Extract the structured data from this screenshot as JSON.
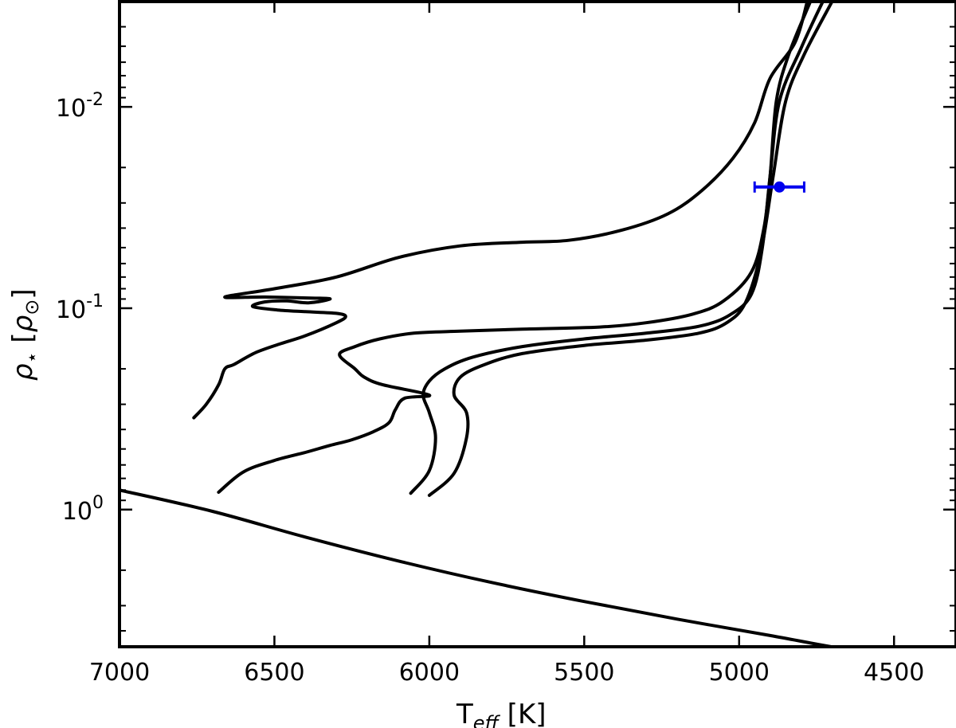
{
  "chart_data": {
    "type": "line",
    "title": "",
    "xlabel": "T_eff [K]",
    "xlabel_main": "T",
    "xlabel_sub": "eff",
    "xlabel_unit": " [K]",
    "ylabel": "ρ⋆ [ρ⊙]",
    "ylabel_main": "ρ",
    "ylabel_sub": "⋆",
    "ylabel_unit_left": " [",
    "ylabel_unit_rho": "ρ",
    "ylabel_unit_sub": "⊙",
    "ylabel_unit_right": "]",
    "x_axis": {
      "scale": "linear",
      "reversed": true,
      "range": [
        7000,
        4300
      ],
      "ticks": [
        7000,
        6500,
        6000,
        5500,
        5000,
        4500
      ],
      "tick_labels": [
        "7000",
        "6500",
        "6000",
        "5500",
        "5000",
        "4500"
      ]
    },
    "y_axis": {
      "scale": "log",
      "reversed": true,
      "range": [
        0.003,
        4.8
      ],
      "major_ticks": [
        0.01,
        0.1,
        1.0
      ],
      "tick_labels": [
        {
          "base": "10",
          "exp": "-2"
        },
        {
          "base": "10",
          "exp": "-1"
        },
        {
          "base": "10",
          "exp": "0"
        }
      ]
    },
    "grid": false,
    "legend": "none",
    "series": [
      {
        "points": [
          [
            7000,
            0.8
          ],
          [
            6700,
            1.02
          ],
          [
            6400,
            1.37
          ],
          [
            6100,
            1.8
          ],
          [
            5800,
            2.3
          ],
          [
            5500,
            2.86
          ],
          [
            5200,
            3.5
          ],
          [
            4900,
            4.22
          ],
          [
            4650,
            4.95
          ],
          [
            4300,
            5.9
          ]
        ]
      },
      {
        "points": [
          [
            6760,
            0.35
          ],
          [
            6720,
            0.3
          ],
          [
            6680,
            0.24
          ],
          [
            6660,
            0.2
          ],
          [
            6630,
            0.19
          ],
          [
            6560,
            0.166
          ],
          [
            6480,
            0.15
          ],
          [
            6400,
            0.137
          ],
          [
            6300,
            0.118
          ],
          [
            6270,
            0.11
          ],
          [
            6300,
            0.106
          ],
          [
            6400,
            0.104
          ],
          [
            6490,
            0.102
          ],
          [
            6570,
            0.098
          ],
          [
            6530,
            0.093
          ],
          [
            6460,
            0.092
          ],
          [
            6390,
            0.094
          ],
          [
            6320,
            0.09
          ],
          [
            6380,
            0.089
          ],
          [
            6530,
            0.088
          ],
          [
            6660,
            0.088
          ],
          [
            6500,
            0.08
          ],
          [
            6300,
            0.07
          ],
          [
            6100,
            0.056
          ],
          [
            5900,
            0.049
          ],
          [
            5700,
            0.047
          ],
          [
            5550,
            0.046
          ],
          [
            5380,
            0.041
          ],
          [
            5230,
            0.034
          ],
          [
            5120,
            0.026
          ],
          [
            5020,
            0.018
          ],
          [
            4950,
            0.012
          ],
          [
            4900,
            0.0072
          ],
          [
            4820,
            0.0048
          ],
          [
            4780,
            0.003
          ]
        ]
      },
      {
        "points": [
          [
            6680,
            0.82
          ],
          [
            6600,
            0.65
          ],
          [
            6500,
            0.57
          ],
          [
            6400,
            0.52
          ],
          [
            6320,
            0.48
          ],
          [
            6250,
            0.45
          ],
          [
            6180,
            0.41
          ],
          [
            6130,
            0.37
          ],
          [
            6110,
            0.32
          ],
          [
            6080,
            0.28
          ],
          [
            6000,
            0.27
          ],
          [
            6150,
            0.24
          ],
          [
            6210,
            0.22
          ],
          [
            6240,
            0.2
          ],
          [
            6290,
            0.17
          ],
          [
            6240,
            0.155
          ],
          [
            6160,
            0.142
          ],
          [
            6050,
            0.133
          ],
          [
            5900,
            0.13
          ],
          [
            5700,
            0.127
          ],
          [
            5450,
            0.124
          ],
          [
            5300,
            0.118
          ],
          [
            5150,
            0.107
          ],
          [
            5050,
            0.092
          ],
          [
            4960,
            0.066
          ],
          [
            4920,
            0.04
          ],
          [
            4900,
            0.022
          ],
          [
            4880,
            0.0094
          ],
          [
            4840,
            0.0055
          ],
          [
            4770,
            0.003
          ]
        ]
      },
      {
        "points": [
          [
            6060,
            0.83
          ],
          [
            6000,
            0.64
          ],
          [
            5980,
            0.44
          ],
          [
            6000,
            0.33
          ],
          [
            6020,
            0.27
          ],
          [
            6000,
            0.23
          ],
          [
            5950,
            0.2
          ],
          [
            5860,
            0.175
          ],
          [
            5700,
            0.155
          ],
          [
            5500,
            0.142
          ],
          [
            5300,
            0.133
          ],
          [
            5130,
            0.123
          ],
          [
            5030,
            0.108
          ],
          [
            4960,
            0.085
          ],
          [
            4925,
            0.05
          ],
          [
            4900,
            0.022
          ],
          [
            4870,
            0.0094
          ],
          [
            4800,
            0.0051
          ],
          [
            4730,
            0.003
          ]
        ]
      },
      {
        "points": [
          [
            6000,
            0.85
          ],
          [
            5920,
            0.66
          ],
          [
            5880,
            0.44
          ],
          [
            5880,
            0.33
          ],
          [
            5920,
            0.27
          ],
          [
            5900,
            0.22
          ],
          [
            5820,
            0.19
          ],
          [
            5700,
            0.168
          ],
          [
            5500,
            0.153
          ],
          [
            5300,
            0.144
          ],
          [
            5130,
            0.133
          ],
          [
            5040,
            0.118
          ],
          [
            4980,
            0.094
          ],
          [
            4930,
            0.053
          ],
          [
            4890,
            0.022
          ],
          [
            4850,
            0.0094
          ],
          [
            4790,
            0.0055
          ],
          [
            4700,
            0.003
          ]
        ]
      }
    ],
    "measurement": {
      "teff": 4870,
      "rho": 0.025,
      "teff_err": [
        4950,
        4790
      ],
      "color": "#0000ee"
    }
  }
}
